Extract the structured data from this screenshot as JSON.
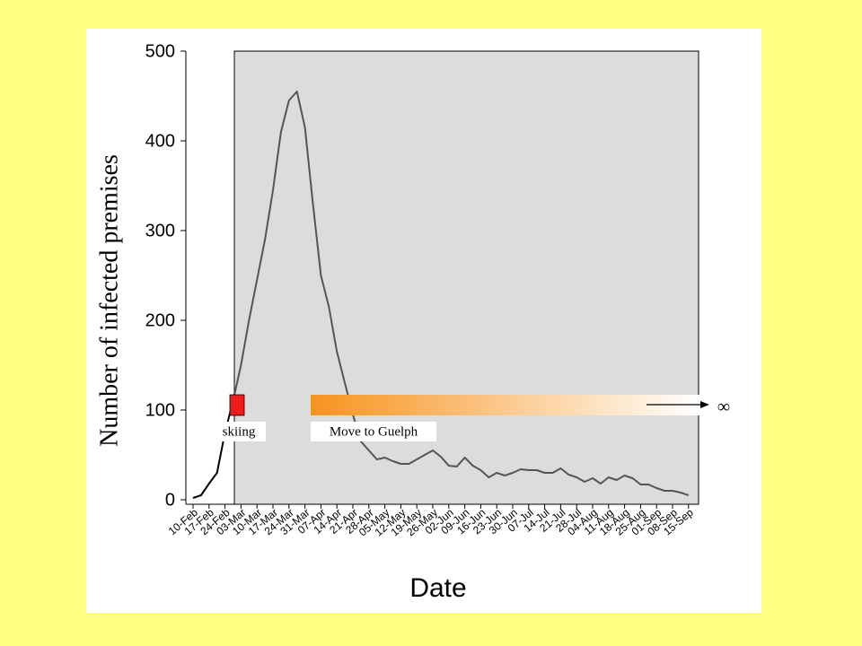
{
  "chart_data": {
    "type": "line",
    "x_label": "Date",
    "y_label": "Number of infected premises",
    "categories": [
      "10-Feb",
      null,
      "17-Feb",
      null,
      "24-Feb",
      null,
      "03-Mar",
      null,
      "10-Mar",
      null,
      "17-Mar",
      null,
      "24-Mar",
      null,
      "31-Mar",
      null,
      "07-Apr",
      null,
      "14-Apr",
      null,
      "21-Apr",
      null,
      "28-Apr",
      null,
      "05-May",
      null,
      "12-May",
      null,
      "19-May",
      null,
      "26-May",
      null,
      "02-Jun",
      null,
      "09-Jun",
      null,
      "16-Jun",
      null,
      "23-Jun",
      null,
      "30-Jun",
      null,
      "07-Jul",
      null,
      "14-Jul",
      null,
      "21-Jul",
      null,
      "28-Jul",
      null,
      "04-Aug",
      null,
      "11-Aug",
      null,
      "18-Aug",
      null,
      "25-Aug",
      null,
      "01-Sep",
      null,
      "08-Sep",
      null,
      "15-Sep"
    ],
    "series": [
      {
        "color": "#555555",
        "values": [
          2,
          5,
          18,
          30,
          75,
          110,
          150,
          200,
          245,
          290,
          345,
          410,
          445,
          455,
          415,
          330,
          250,
          215,
          165,
          130,
          95,
          65,
          55,
          45,
          47,
          43,
          40,
          40,
          45,
          50,
          55,
          48,
          38,
          37,
          47,
          38,
          33,
          25,
          30,
          27,
          30,
          34,
          33,
          33,
          30,
          30,
          35,
          28,
          25,
          20,
          24,
          18,
          25,
          22,
          27,
          24,
          17,
          17,
          13,
          10,
          10,
          8,
          5
        ]
      }
    ],
    "ylim": [
      -5,
      500
    ],
    "yticks": [
      0,
      100,
      200,
      300,
      400,
      500
    ],
    "annotations": [
      "skiing",
      "Move to Guelph",
      "∞"
    ]
  }
}
